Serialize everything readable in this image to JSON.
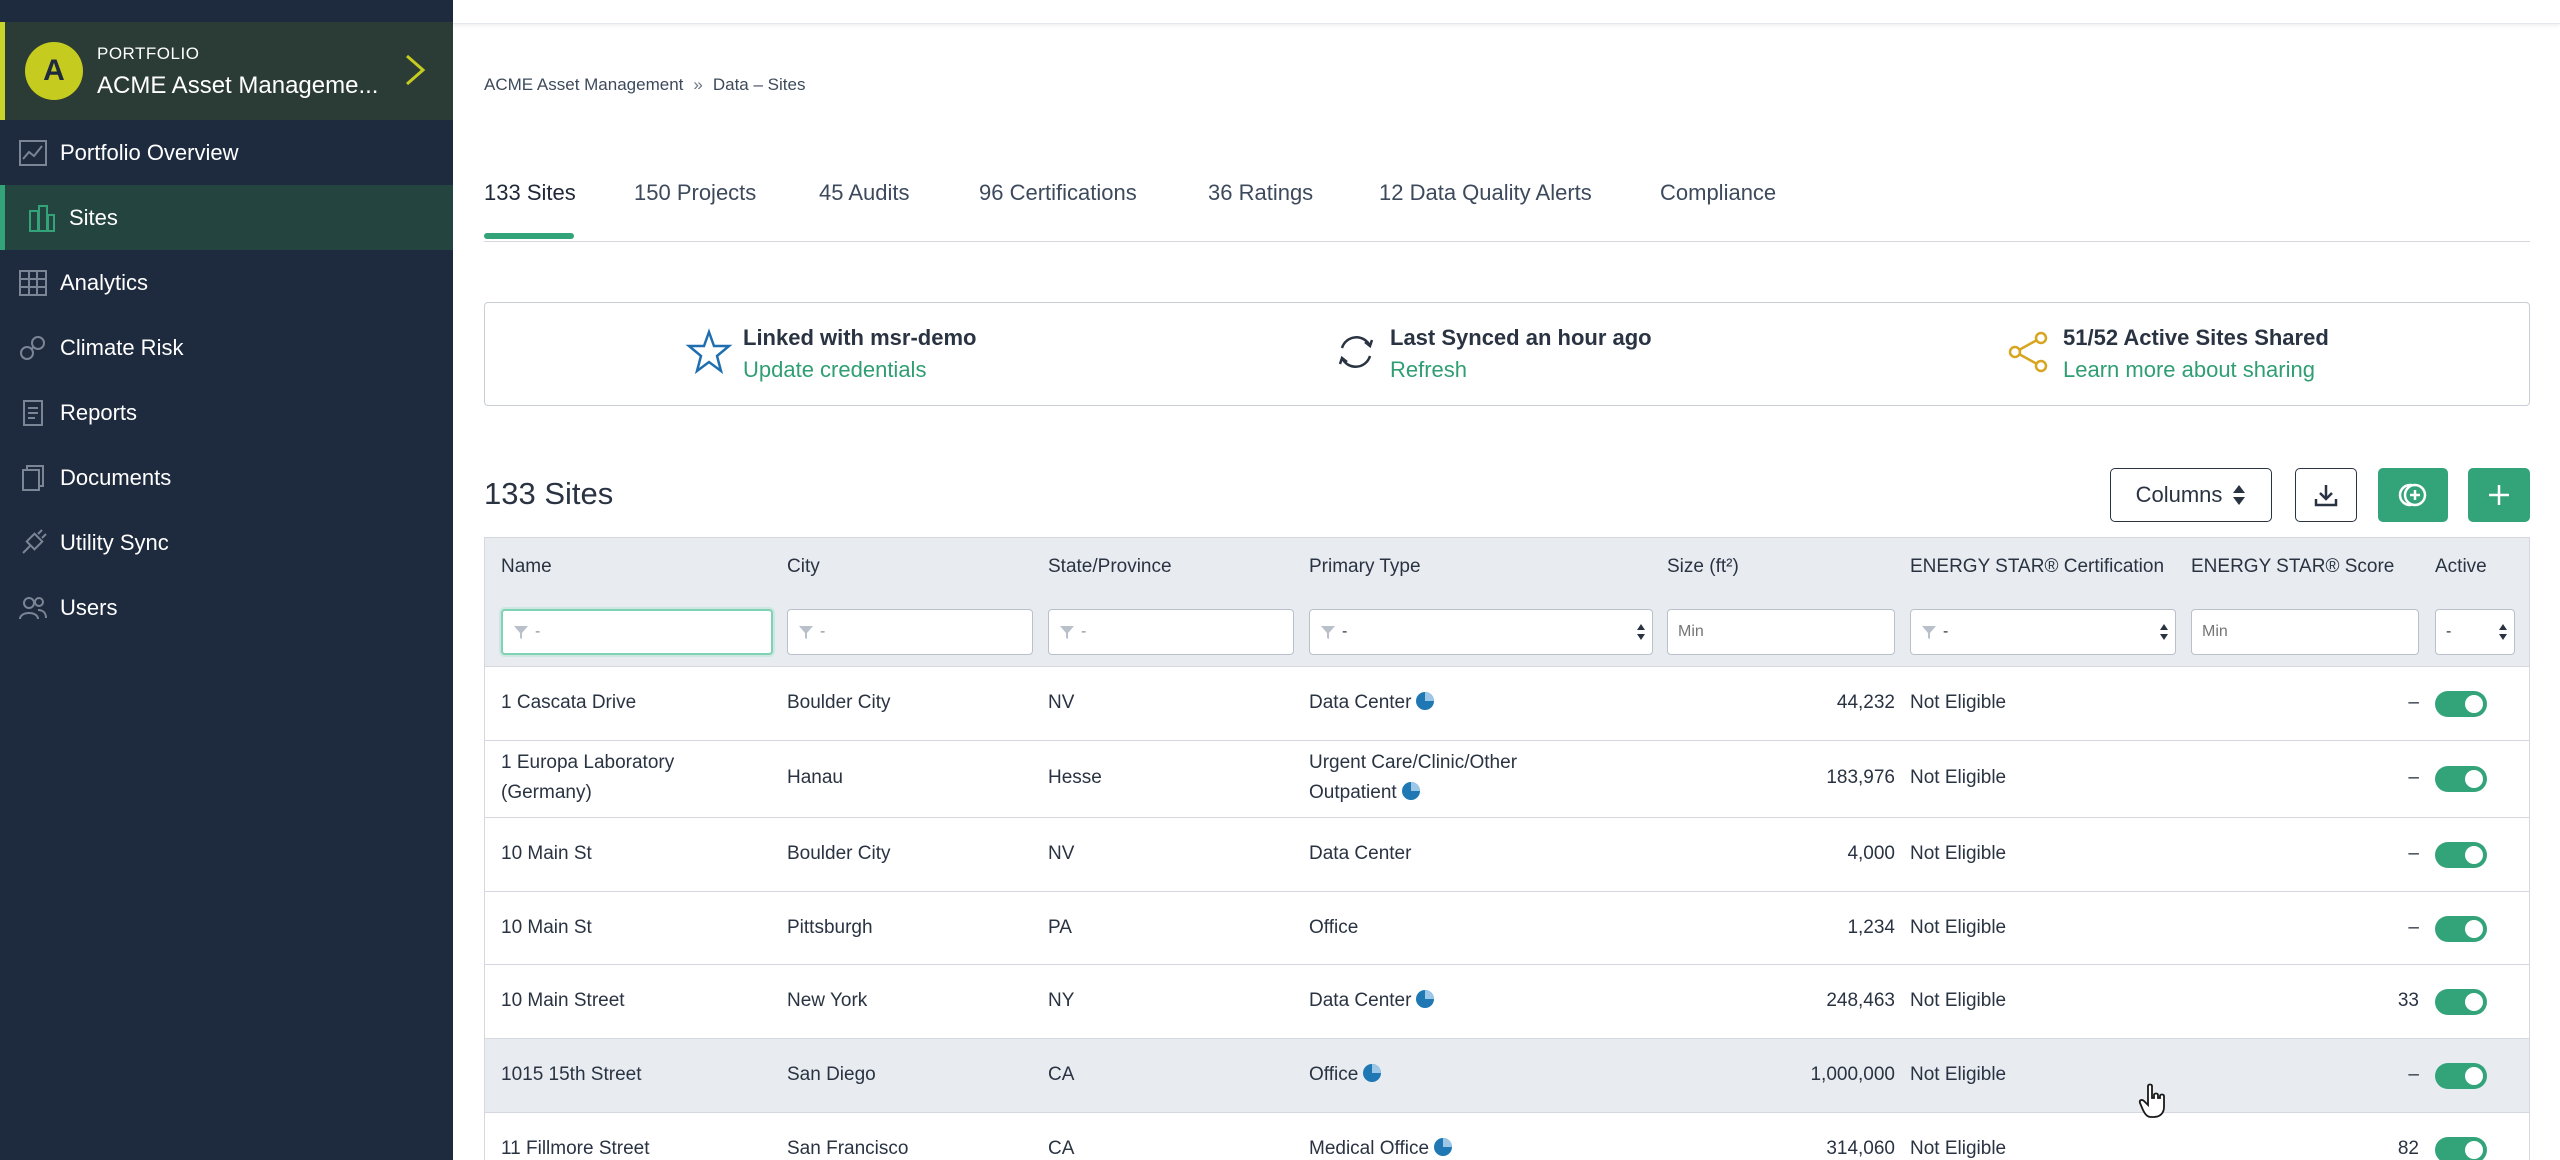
{
  "sidebar": {
    "portfolio_label": "PORTFOLIO",
    "portfolio_name": "ACME Asset Manageme...",
    "avatar_letter": "A",
    "items": [
      {
        "label": "Portfolio Overview",
        "icon": "chart-icon"
      },
      {
        "label": "Sites",
        "icon": "buildings-icon",
        "active": true
      },
      {
        "label": "Analytics",
        "icon": "analytics-icon"
      },
      {
        "label": "Climate Risk",
        "icon": "climate-icon"
      },
      {
        "label": "Reports",
        "icon": "report-icon"
      },
      {
        "label": "Documents",
        "icon": "documents-icon"
      },
      {
        "label": "Utility Sync",
        "icon": "plug-icon"
      },
      {
        "label": "Users",
        "icon": "users-icon"
      }
    ]
  },
  "breadcrumb": {
    "root": "ACME Asset Management",
    "sep": "»",
    "current": "Data – Sites"
  },
  "tabs": [
    "133 Sites",
    "150 Projects",
    "45 Audits",
    "96 Certifications",
    "36 Ratings",
    "12 Data Quality Alerts",
    "Compliance"
  ],
  "info": {
    "linked_title": "Linked with msr-demo",
    "linked_link": "Update credentials",
    "sync_title": "Last Synced an hour ago",
    "sync_link": "Refresh",
    "share_title": "51/52 Active Sites Shared",
    "share_link": "Learn more about sharing"
  },
  "sites_title": "133 Sites",
  "toolbar": {
    "columns_label": "Columns"
  },
  "table": {
    "headers": [
      "Name",
      "City",
      "State/Province",
      "Primary Type",
      "Size (ft²)",
      "ENERGY STAR® Certification",
      "ENERGY STAR® Score",
      "Active"
    ],
    "filters": {
      "name": "-",
      "city": "-",
      "state": "-",
      "type": "-",
      "size_placeholder": "Min",
      "cert": "-",
      "score_placeholder": "Min",
      "active": "-"
    },
    "rows": [
      {
        "name": "1 Cascata Drive",
        "city": "Boulder City",
        "state": "NV",
        "type": "Data Center",
        "size": "44,232",
        "cert": "Not Eligible",
        "score": "–"
      },
      {
        "name": "1 Europa Laboratory (Germany)",
        "city": "Hanau",
        "state": "Hesse",
        "type": "Urgent Care/Clinic/Other Outpatient",
        "size": "183,976",
        "cert": "Not Eligible",
        "score": "–"
      },
      {
        "name": "10 Main St",
        "city": "Boulder City",
        "state": "NV",
        "type": "Data Center",
        "size": "4,000",
        "cert": "Not Eligible",
        "score": "–"
      },
      {
        "name": "10 Main St",
        "city": "Pittsburgh",
        "state": "PA",
        "type": "Office",
        "size": "1,234",
        "cert": "Not Eligible",
        "score": "–"
      },
      {
        "name": "10 Main Street",
        "city": "New York",
        "state": "NY",
        "type": "Data Center",
        "size": "248,463",
        "cert": "Not Eligible",
        "score": "33"
      },
      {
        "name": "1015 15th Street",
        "city": "San Diego",
        "state": "CA",
        "type": "Office",
        "size": "1,000,000",
        "cert": "Not Eligible",
        "score": "–"
      },
      {
        "name": "11 Fillmore Street",
        "city": "San Francisco",
        "state": "CA",
        "type": "Medical Office",
        "size": "314,060",
        "cert": "Not Eligible",
        "score": "82"
      }
    ]
  },
  "colors": {
    "sidebar_bg": "#1e2a3d",
    "accent": "#33a479",
    "avatar": "#c6cc1f",
    "link": "#2f9e73"
  }
}
